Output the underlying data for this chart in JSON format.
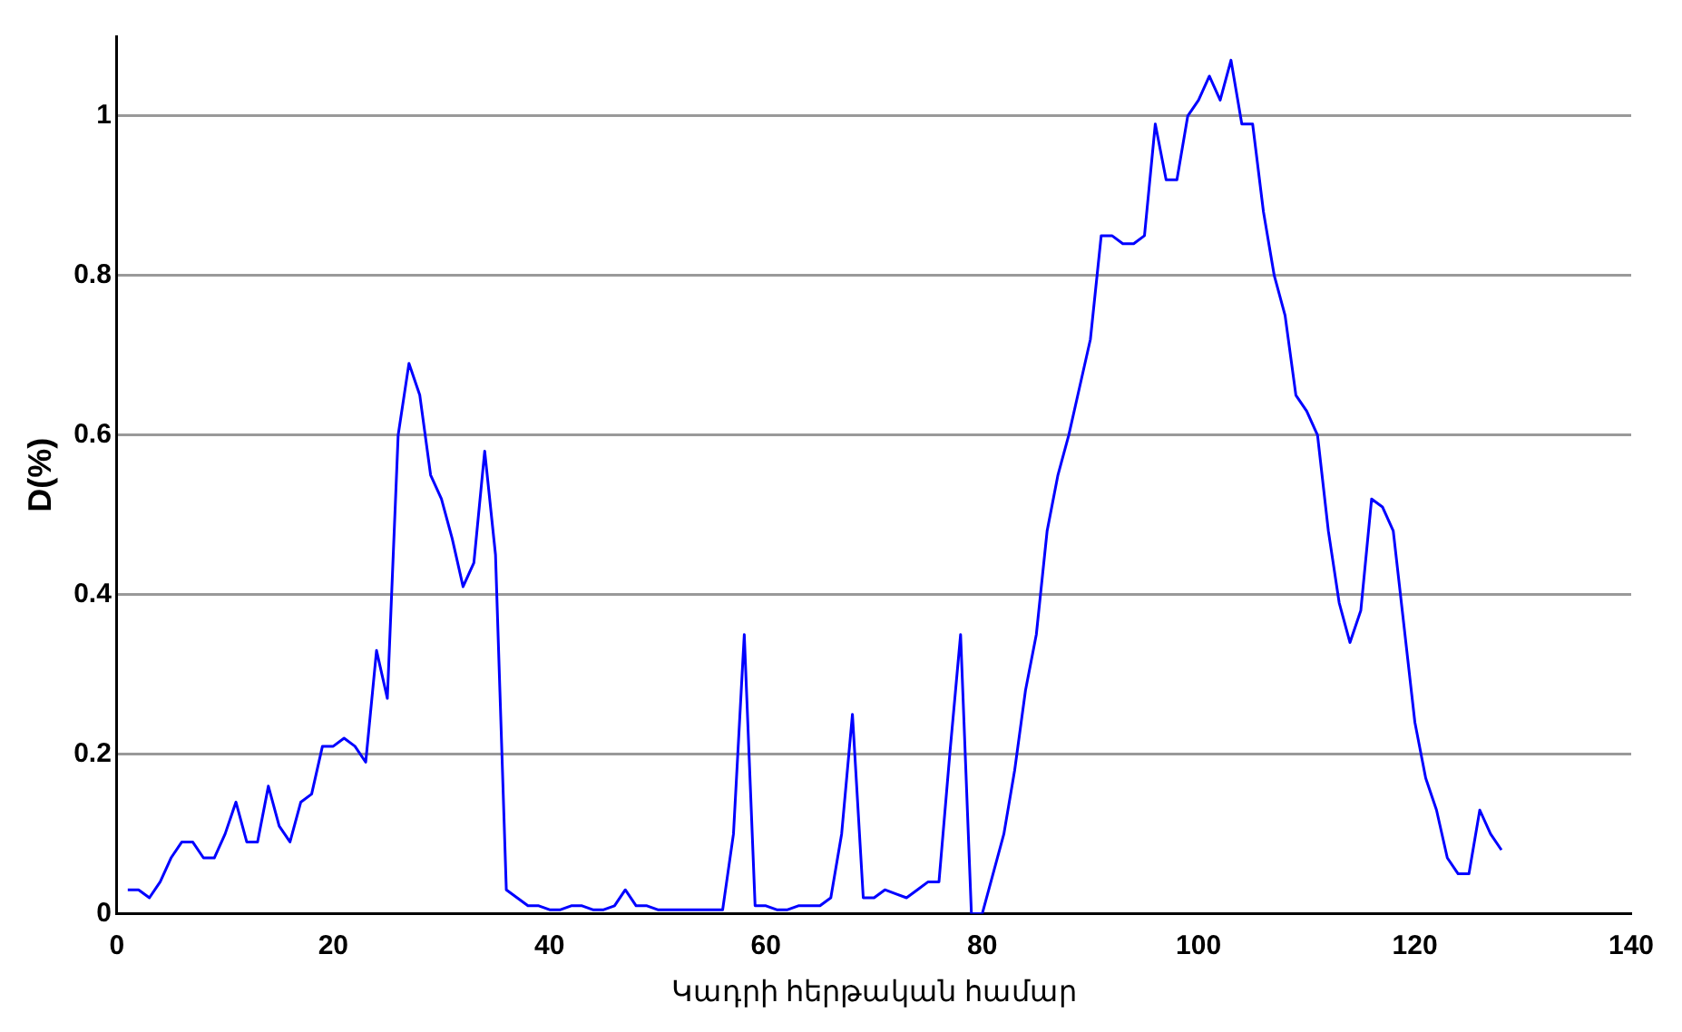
{
  "chart_data": {
    "type": "line",
    "xlabel": "Կադրի հերթական համար",
    "ylabel": "D(%)",
    "x": [
      1,
      2,
      3,
      4,
      5,
      6,
      7,
      8,
      9,
      10,
      11,
      12,
      13,
      14,
      15,
      16,
      17,
      18,
      19,
      20,
      21,
      22,
      23,
      24,
      25,
      26,
      27,
      28,
      29,
      30,
      31,
      32,
      33,
      34,
      35,
      36,
      37,
      38,
      39,
      40,
      41,
      42,
      43,
      44,
      45,
      46,
      47,
      48,
      49,
      50,
      51,
      52,
      53,
      54,
      55,
      56,
      57,
      58,
      59,
      60,
      61,
      62,
      63,
      64,
      65,
      66,
      67,
      68,
      69,
      70,
      71,
      72,
      73,
      74,
      75,
      76,
      77,
      78,
      79,
      80,
      81,
      82,
      83,
      84,
      85,
      86,
      87,
      88,
      89,
      90,
      91,
      92,
      93,
      94,
      95,
      96,
      97,
      98,
      99,
      100,
      101,
      102,
      103,
      104,
      105,
      106,
      107,
      108,
      109,
      110,
      111,
      112,
      113,
      114,
      115,
      116,
      117,
      118,
      119,
      120,
      121,
      122,
      123,
      124,
      125,
      126,
      127,
      128
    ],
    "series": [
      {
        "color": "#0000ff",
        "values": [
          0.03,
          0.03,
          0.02,
          0.04,
          0.07,
          0.09,
          0.09,
          0.07,
          0.07,
          0.1,
          0.14,
          0.09,
          0.09,
          0.16,
          0.11,
          0.09,
          0.14,
          0.15,
          0.21,
          0.21,
          0.22,
          0.21,
          0.19,
          0.33,
          0.27,
          0.6,
          0.69,
          0.65,
          0.55,
          0.52,
          0.47,
          0.41,
          0.44,
          0.58,
          0.45,
          0.03,
          0.02,
          0.01,
          0.01,
          0.005,
          0.005,
          0.01,
          0.01,
          0.005,
          0.005,
          0.01,
          0.03,
          0.01,
          0.01,
          0.005,
          0.005,
          0.005,
          0.005,
          0.005,
          0.005,
          0.005,
          0.1,
          0.35,
          0.01,
          0.01,
          0.005,
          0.005,
          0.01,
          0.01,
          0.01,
          0.02,
          0.1,
          0.25,
          0.02,
          0.02,
          0.03,
          0.025,
          0.02,
          0.03,
          0.04,
          0.04,
          0.2,
          0.35,
          0,
          0,
          0.05,
          0.1,
          0.18,
          0.28,
          0.35,
          0.48,
          0.55,
          0.6,
          0.66,
          0.72,
          0.85,
          0.85,
          0.84,
          0.84,
          0.85,
          0.99,
          0.92,
          0.92,
          1.0,
          1.02,
          1.05,
          1.02,
          1.07,
          0.99,
          0.99,
          0.88,
          0.8,
          0.75,
          0.65,
          0.63,
          0.6,
          0.48,
          0.39,
          0.34,
          0.38,
          0.52,
          0.51,
          0.48,
          0.36,
          0.24,
          0.17,
          0.13,
          0.07,
          0.05,
          0.05,
          0.13,
          0.1,
          0.08
        ]
      }
    ],
    "xlim": [
      0,
      140
    ],
    "xticks": [
      0,
      20,
      40,
      60,
      80,
      100,
      120,
      140
    ],
    "ylim": [
      0,
      1.1
    ],
    "yticks": [
      0,
      0.2,
      0.4,
      0.6,
      0.8,
      1
    ],
    "grid": "y",
    "legend": false,
    "marker": "none",
    "line_style": "solid"
  }
}
